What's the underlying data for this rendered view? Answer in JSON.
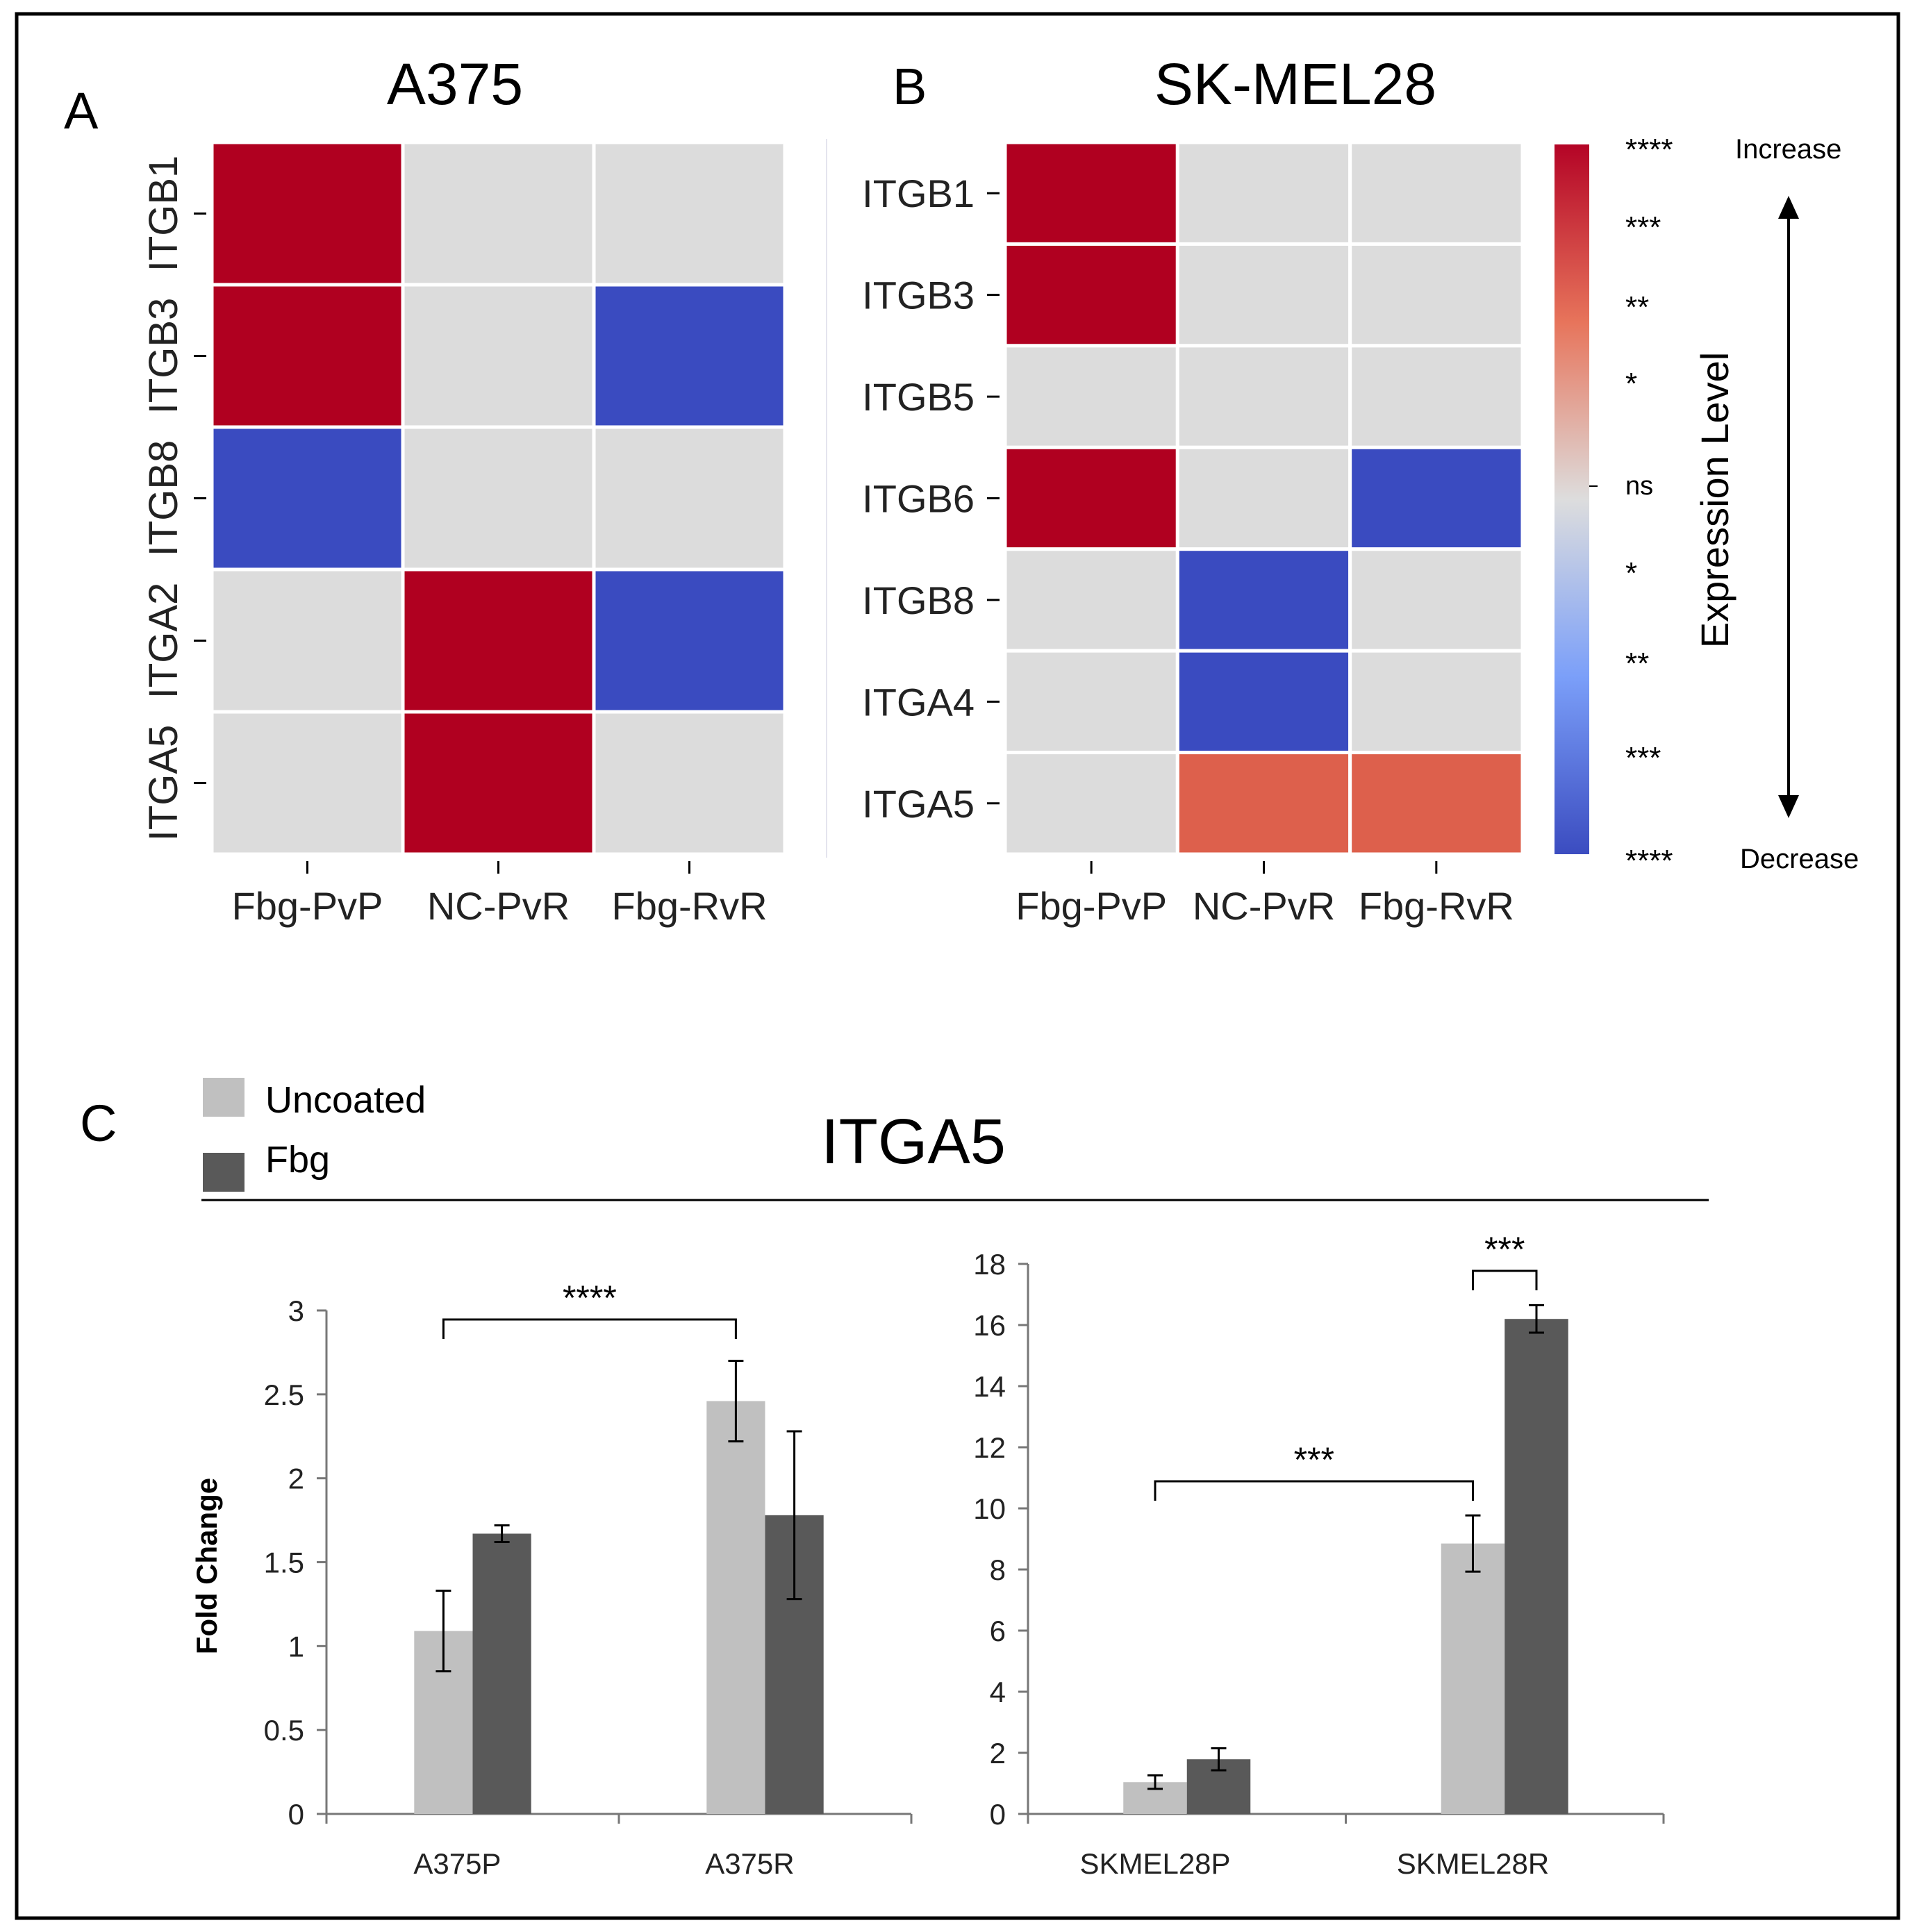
{
  "colors": {
    "increase_strong": "#b00020",
    "increase_medium": "#dd604c",
    "neutral": "#dcdcdc",
    "decrease_strong": "#3a4bc0",
    "uncoated": "#c0c0c0",
    "fbg": "#595959",
    "frame": "#000000"
  },
  "panel_a": {
    "letter": "A",
    "title": "A375"
  },
  "panel_b": {
    "letter": "B",
    "title": "SK-MEL28"
  },
  "colorbar": {
    "label": "Expression Level",
    "increase_label": "Increase",
    "decrease_label": "Decrease",
    "ticks": [
      "****",
      "***",
      "**",
      "*",
      "ns",
      "*",
      "**",
      "***",
      "****"
    ]
  },
  "panel_c": {
    "letter": "C",
    "title": "ITGA5",
    "legend": [
      "Uncoated",
      "Fbg"
    ],
    "ylabel": "Fold Change"
  },
  "chart_data": [
    {
      "type": "heatmap",
      "title": "A375",
      "rows": [
        "ITGB1",
        "ITGB3",
        "ITGB8",
        "ITGA2",
        "ITGA5"
      ],
      "columns": [
        "Fbg-PvP",
        "NC-PvR",
        "Fbg-RvR"
      ],
      "values": [
        [
          4,
          0,
          0
        ],
        [
          4,
          0,
          -4
        ],
        [
          -4,
          0,
          0
        ],
        [
          0,
          4,
          -4
        ],
        [
          0,
          4,
          0
        ]
      ],
      "scale": "significance level, -4 (****, decrease) to +4 (****, increase), 0 = ns"
    },
    {
      "type": "heatmap",
      "title": "SK-MEL28",
      "rows": [
        "ITGB1",
        "ITGB3",
        "ITGB5",
        "ITGB6",
        "ITGB8",
        "ITGA4",
        "ITGA5"
      ],
      "columns": [
        "Fbg-PvP",
        "NC-PvR",
        "Fbg-RvR"
      ],
      "values": [
        [
          4,
          0,
          0
        ],
        [
          4,
          0,
          0
        ],
        [
          0,
          0,
          0
        ],
        [
          4,
          0,
          -4
        ],
        [
          0,
          -4,
          0
        ],
        [
          0,
          -4,
          0
        ],
        [
          0,
          3,
          3
        ]
      ],
      "scale": "significance level, -4 (****, decrease) to +4 (****, increase), 0 = ns"
    },
    {
      "type": "bar",
      "title": "ITGA5",
      "categories": [
        "A375P",
        "A375R"
      ],
      "series": [
        {
          "name": "Uncoated",
          "values": [
            1.09,
            2.46
          ],
          "errors": [
            0.24,
            0.24
          ]
        },
        {
          "name": "Fbg",
          "values": [
            1.67,
            1.78
          ],
          "errors": [
            0.05,
            0.5
          ]
        }
      ],
      "ylabel": "Fold Change",
      "ylim": [
        0,
        3
      ],
      "yticks": [
        "0",
        "0.5",
        "1",
        "1.5",
        "2",
        "2.5",
        "3"
      ],
      "significance": [
        {
          "from": "A375P Uncoated",
          "to": "A375R Uncoated",
          "label": "****"
        }
      ]
    },
    {
      "type": "bar",
      "title": "ITGA5",
      "categories": [
        "SKMEL28P",
        "SKMEL28R"
      ],
      "series": [
        {
          "name": "Uncoated",
          "values": [
            1.04,
            8.85
          ],
          "errors": [
            0.22,
            0.92
          ]
        },
        {
          "name": "Fbg",
          "values": [
            1.79,
            16.2
          ],
          "errors": [
            0.36,
            0.45
          ]
        }
      ],
      "ylabel": "",
      "ylim": [
        0,
        18
      ],
      "yticks": [
        "0",
        "2",
        "4",
        "6",
        "8",
        "10",
        "12",
        "14",
        "16",
        "18"
      ],
      "significance": [
        {
          "from": "SKMEL28P Uncoated",
          "to": "SKMEL28R Uncoated",
          "label": "***"
        },
        {
          "from": "SKMEL28R Uncoated",
          "to": "SKMEL28R Fbg",
          "label": "***"
        }
      ]
    }
  ]
}
